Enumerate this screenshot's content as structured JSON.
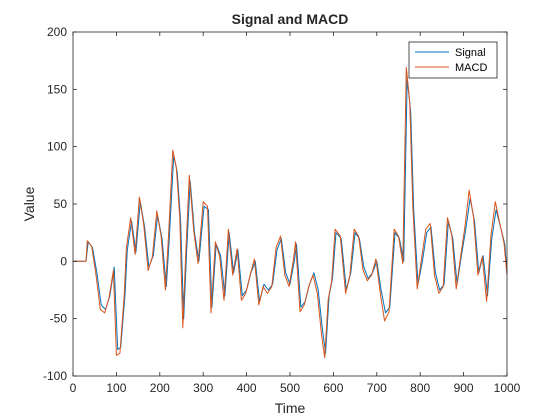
{
  "chart_data": {
    "type": "line",
    "title": "Signal and MACD",
    "xlabel": "Time",
    "ylabel": "Value",
    "xlim": [
      0,
      1000
    ],
    "ylim": [
      -100,
      200
    ],
    "xticks": [
      0,
      100,
      200,
      300,
      400,
      500,
      600,
      700,
      800,
      900,
      1000
    ],
    "yticks": [
      -100,
      -50,
      0,
      50,
      100,
      150,
      200
    ],
    "grid": false,
    "legend_position": "top-right",
    "series": [
      {
        "name": "Signal",
        "color": "#0072bd",
        "x": [
          0,
          30,
          35,
          45,
          55,
          65,
          75,
          85,
          95,
          103,
          110,
          120,
          125,
          135,
          145,
          155,
          165,
          175,
          185,
          195,
          205,
          215,
          222,
          232,
          240,
          248,
          255,
          262,
          270,
          280,
          290,
          302,
          312,
          320,
          330,
          340,
          350,
          360,
          370,
          380,
          390,
          400,
          410,
          420,
          430,
          440,
          450,
          460,
          470,
          480,
          490,
          500,
          510,
          515,
          525,
          535,
          545,
          555,
          565,
          575,
          582,
          590,
          598,
          606,
          618,
          630,
          640,
          650,
          660,
          670,
          680,
          690,
          700,
          710,
          720,
          730,
          742,
          752,
          762,
          770,
          778,
          785,
          795,
          805,
          815,
          825,
          835,
          845,
          855,
          865,
          875,
          885,
          895,
          905,
          915,
          925,
          935,
          945,
          955,
          965,
          975,
          985,
          995,
          1000
        ],
        "values": [
          0,
          0,
          17,
          12,
          -10,
          -38,
          -42,
          -30,
          -5,
          -77,
          -75,
          -28,
          10,
          35,
          8,
          52,
          30,
          -5,
          5,
          40,
          20,
          -22,
          20,
          92,
          78,
          35,
          -50,
          10,
          70,
          25,
          0,
          48,
          45,
          -40,
          15,
          5,
          -30,
          25,
          -10,
          10,
          -30,
          -25,
          -10,
          0,
          -35,
          -20,
          -25,
          -20,
          10,
          20,
          -10,
          -20,
          0,
          15,
          -40,
          -35,
          -20,
          -10,
          -25,
          -60,
          -80,
          -30,
          -15,
          25,
          20,
          -25,
          -10,
          25,
          20,
          -5,
          -15,
          -10,
          0,
          -25,
          -45,
          -40,
          25,
          20,
          0,
          160,
          130,
          45,
          -20,
          0,
          25,
          30,
          -10,
          -25,
          -20,
          35,
          20,
          -20,
          5,
          28,
          55,
          35,
          -10,
          5,
          -30,
          20,
          45,
          30,
          15,
          -10
        ]
      },
      {
        "name": "MACD",
        "color": "#d95319",
        "x": [
          0,
          30,
          33,
          43,
          53,
          63,
          73,
          83,
          93,
          100,
          108,
          118,
          123,
          133,
          143,
          153,
          163,
          173,
          183,
          193,
          203,
          213,
          220,
          230,
          238,
          246,
          253,
          260,
          268,
          278,
          288,
          300,
          310,
          318,
          328,
          338,
          348,
          358,
          368,
          378,
          388,
          398,
          408,
          418,
          428,
          438,
          448,
          458,
          468,
          478,
          488,
          498,
          508,
          513,
          523,
          533,
          543,
          553,
          563,
          573,
          580,
          588,
          596,
          604,
          616,
          628,
          638,
          648,
          658,
          668,
          678,
          688,
          698,
          708,
          718,
          728,
          740,
          750,
          760,
          768,
          776,
          783,
          793,
          803,
          813,
          823,
          833,
          843,
          853,
          863,
          873,
          883,
          893,
          903,
          913,
          923,
          933,
          943,
          953,
          963,
          973,
          983,
          993,
          1000
        ],
        "values": [
          0,
          0,
          18,
          13,
          -12,
          -42,
          -45,
          -32,
          -8,
          -82,
          -80,
          -30,
          12,
          38,
          6,
          56,
          32,
          -8,
          4,
          44,
          22,
          -25,
          22,
          97,
          82,
          38,
          -58,
          8,
          75,
          27,
          -2,
          52,
          48,
          -45,
          17,
          4,
          -34,
          28,
          -12,
          11,
          -34,
          -28,
          -12,
          2,
          -38,
          -22,
          -28,
          -22,
          12,
          22,
          -12,
          -22,
          2,
          17,
          -44,
          -38,
          -22,
          -12,
          -28,
          -65,
          -84,
          -33,
          -17,
          28,
          22,
          -28,
          -12,
          28,
          22,
          -7,
          -17,
          -12,
          2,
          -28,
          -52,
          -44,
          28,
          22,
          -2,
          169,
          138,
          48,
          -24,
          2,
          28,
          33,
          -12,
          -28,
          -22,
          38,
          22,
          -24,
          4,
          30,
          62,
          38,
          -12,
          4,
          -35,
          22,
          52,
          34,
          16,
          -12
        ]
      }
    ]
  }
}
